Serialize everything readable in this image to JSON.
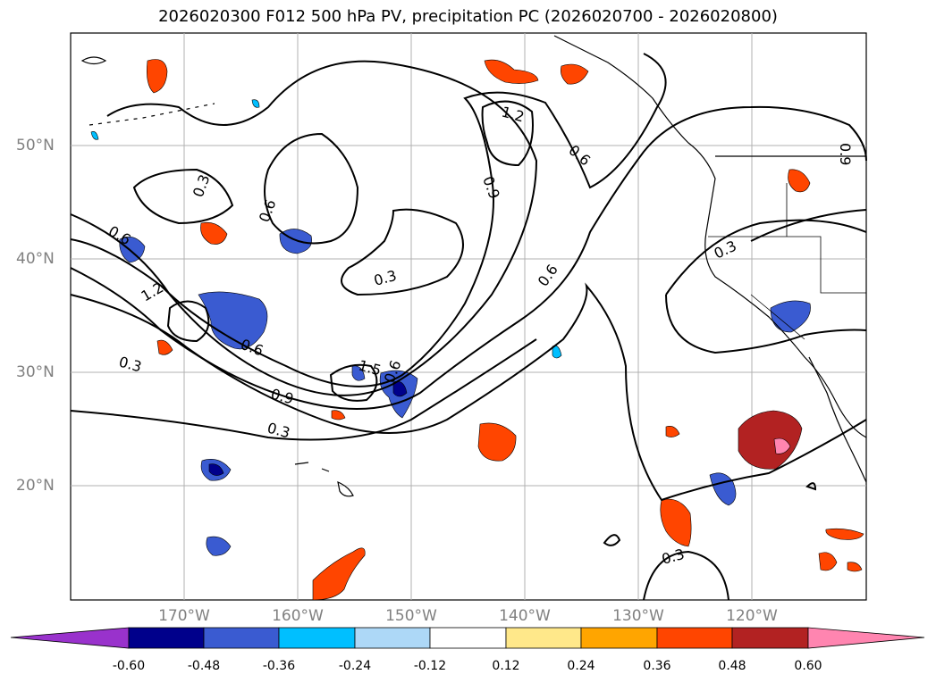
{
  "title": "2026020300 F012 500 hPa PV, precipitation PC (2026020700 - 2026020800)",
  "map": {
    "lat_labels": [
      "50°N",
      "40°N",
      "30°N",
      "20°N"
    ],
    "lon_labels": [
      "170°W",
      "160°W",
      "150°W",
      "140°W",
      "130°W",
      "120°W"
    ],
    "contour_labels": [
      "0.3",
      "0.6",
      "0.9",
      "1.2",
      "1.5",
      "0.6",
      "1.2",
      "0.3",
      "0.6",
      "0.9",
      "0.3",
      "0.3",
      "0.6",
      "0.6",
      "0.3",
      "0.9",
      "0.6",
      "0.3",
      "0.3"
    ]
  },
  "colorbar": {
    "colors": [
      "#9932cc",
      "#00008b",
      "#3a5bd1",
      "#00bfff",
      "#add8f7",
      "#ffffff",
      "#ffe88a",
      "#ffa500",
      "#ff4500",
      "#b22222",
      "#ff85b0"
    ],
    "ticks": [
      "-0.60",
      "-0.48",
      "-0.36",
      "-0.24",
      "-0.12",
      "0.12",
      "0.24",
      "0.36",
      "0.48",
      "0.60"
    ]
  }
}
